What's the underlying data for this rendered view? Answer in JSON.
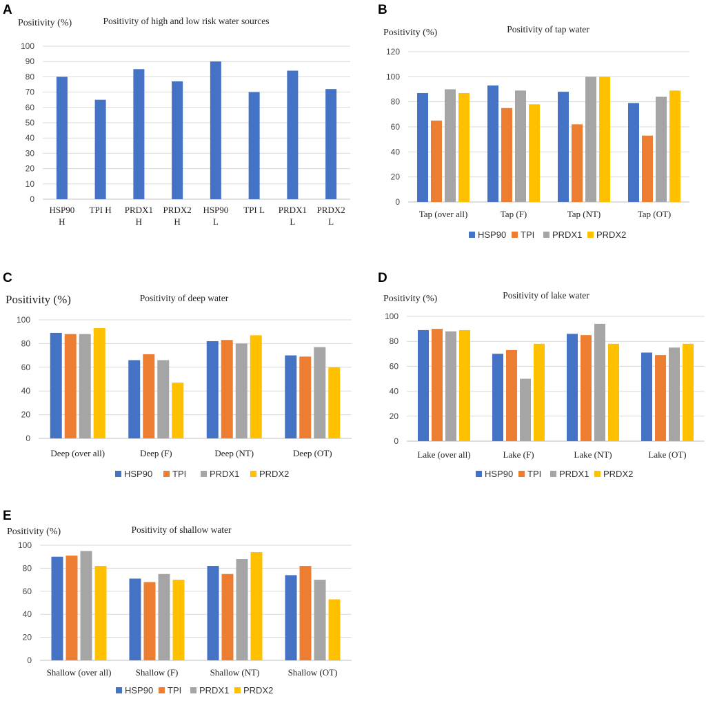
{
  "colors": {
    "HSP90": "#4472C4",
    "TPI": "#ED7D31",
    "PRDX1": "#A5A5A5",
    "PRDX2": "#FFC000"
  },
  "chart_data": [
    {
      "panel": "A",
      "type": "bar",
      "title": "Positivity of high and low risk water sources",
      "ylabel": "Positivity (%)",
      "ylim": [
        0,
        100
      ],
      "yticks": [
        0,
        10,
        20,
        30,
        40,
        50,
        60,
        70,
        80,
        90,
        100
      ],
      "categories": [
        [
          "HSP90",
          "H"
        ],
        [
          "TPI H"
        ],
        [
          "PRDX1",
          "H"
        ],
        [
          "PRDX2",
          "H"
        ],
        [
          "HSP90",
          "L"
        ],
        [
          "TPI L"
        ],
        [
          "PRDX1",
          "L"
        ],
        [
          "PRDX2",
          "L"
        ]
      ],
      "series": [
        {
          "name": "Positivity",
          "color_key": "HSP90",
          "values": [
            80,
            65,
            85,
            77,
            90,
            70,
            84,
            72
          ]
        }
      ],
      "legend": []
    },
    {
      "panel": "B",
      "type": "bar",
      "title": "Positivity of tap water",
      "ylabel": "Positivity (%)",
      "ylim": [
        0,
        120
      ],
      "yticks": [
        0,
        20,
        40,
        60,
        80,
        100,
        120
      ],
      "categories": [
        [
          "Tap (over all)"
        ],
        [
          "Tap (F)"
        ],
        [
          "Tap (NT)"
        ],
        [
          "Tap (OT)"
        ]
      ],
      "series": [
        {
          "name": "HSP90",
          "values": [
            87,
            93,
            88,
            79
          ]
        },
        {
          "name": "TPI",
          "values": [
            65,
            75,
            62,
            53
          ]
        },
        {
          "name": "PRDX1",
          "values": [
            90,
            89,
            100,
            84
          ]
        },
        {
          "name": "PRDX2",
          "values": [
            87,
            78,
            100,
            89
          ]
        }
      ],
      "legend": [
        "HSP90",
        "TPI",
        "PRDX1",
        "PRDX2"
      ]
    },
    {
      "panel": "C",
      "type": "bar",
      "title": "Positivity of deep water",
      "ylabel": "Positivity (%)",
      "ylim": [
        0,
        100
      ],
      "yticks": [
        0,
        20,
        40,
        60,
        80,
        100
      ],
      "categories": [
        [
          "Deep (over all)"
        ],
        [
          "Deep (F)"
        ],
        [
          "Deep (NT)"
        ],
        [
          "Deep (OT)"
        ]
      ],
      "series": [
        {
          "name": "HSP90",
          "values": [
            89,
            66,
            82,
            70
          ]
        },
        {
          "name": "TPI",
          "values": [
            88,
            71,
            83,
            69
          ]
        },
        {
          "name": "PRDX1",
          "values": [
            88,
            66,
            80,
            77
          ]
        },
        {
          "name": "PRDX2",
          "values": [
            93,
            47,
            87,
            60
          ]
        }
      ],
      "legend": [
        "HSP90",
        "TPI",
        "PRDX1",
        "PRDX2"
      ]
    },
    {
      "panel": "D",
      "type": "bar",
      "title": "Positivity of lake water",
      "ylabel": "Positivity (%)",
      "ylim": [
        0,
        100
      ],
      "yticks": [
        0,
        20,
        40,
        60,
        80,
        100
      ],
      "categories": [
        [
          "Lake (over all)"
        ],
        [
          "Lake (F)"
        ],
        [
          "Lake (NT)"
        ],
        [
          "Lake (OT)"
        ]
      ],
      "series": [
        {
          "name": "HSP90",
          "values": [
            89,
            70,
            86,
            71
          ]
        },
        {
          "name": "TPI",
          "values": [
            90,
            73,
            85,
            69
          ]
        },
        {
          "name": "PRDX1",
          "values": [
            88,
            50,
            94,
            75
          ]
        },
        {
          "name": "PRDX2",
          "values": [
            89,
            78,
            78,
            78
          ]
        }
      ],
      "legend": [
        "HSP90",
        "TPI",
        "PRDX1",
        "PRDX2"
      ]
    },
    {
      "panel": "E",
      "type": "bar",
      "title": "Positivity of shallow water",
      "ylabel": "Positivity (%)",
      "ylim": [
        0,
        100
      ],
      "yticks": [
        0,
        20,
        40,
        60,
        80,
        100
      ],
      "categories": [
        [
          "Shallow (over all)"
        ],
        [
          "Shallow (F)"
        ],
        [
          "Shallow (NT)"
        ],
        [
          "Shallow (OT)"
        ]
      ],
      "series": [
        {
          "name": "HSP90",
          "values": [
            90,
            71,
            82,
            74
          ]
        },
        {
          "name": "TPI",
          "values": [
            91,
            68,
            75,
            82
          ]
        },
        {
          "name": "PRDX1",
          "values": [
            95,
            75,
            88,
            70
          ]
        },
        {
          "name": "PRDX2",
          "values": [
            82,
            70,
            94,
            53
          ]
        }
      ],
      "legend": [
        "HSP90",
        "TPI",
        "PRDX1",
        "PRDX2"
      ]
    }
  ]
}
